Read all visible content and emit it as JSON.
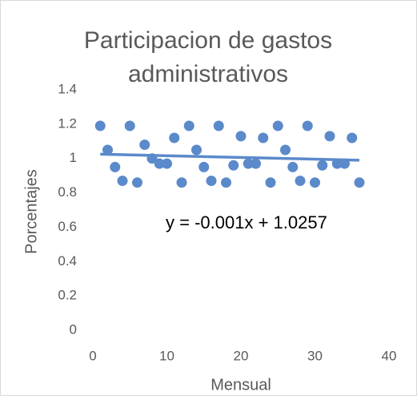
{
  "chart_data": {
    "type": "scatter",
    "title": "Participacion de gastos administrativos",
    "x_label": "Mensual",
    "y_label": "Porcentajes",
    "annotation": "y = -0.001x + 1.0257",
    "color": "#5b8acb",
    "xlim": [
      0,
      40
    ],
    "xticks": [
      0,
      10,
      20,
      30,
      40
    ],
    "ylim": [
      0,
      1.4
    ],
    "yticks": [
      0,
      0.2,
      0.4,
      0.6,
      0.8,
      1,
      1.2,
      1.4
    ],
    "grid": false,
    "series": [
      {
        "x": [
          1,
          2,
          3,
          4,
          5,
          6,
          7,
          8,
          9,
          10,
          11,
          12,
          13,
          14,
          15,
          16,
          17,
          18,
          19,
          20,
          21,
          22,
          23,
          24,
          25,
          26,
          27,
          28,
          29,
          30,
          31,
          32,
          33,
          34,
          35,
          36
        ],
        "values": [
          1.19,
          1.05,
          0.95,
          0.87,
          1.19,
          0.86,
          1.08,
          1.0,
          0.97,
          0.97,
          1.12,
          0.86,
          1.19,
          1.05,
          0.95,
          0.87,
          1.19,
          0.86,
          0.96,
          1.13,
          0.97,
          0.97,
          1.12,
          0.86,
          1.19,
          1.05,
          0.95,
          0.87,
          1.19,
          0.86,
          0.96,
          1.13,
          0.97,
          0.97,
          1.12,
          0.86
        ]
      }
    ],
    "trendline": {
      "x": [
        1,
        36
      ],
      "values": [
        1.025,
        0.99
      ]
    }
  }
}
